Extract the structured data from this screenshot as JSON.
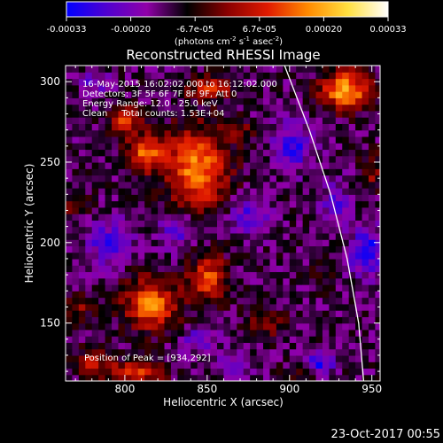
{
  "chart_data": {
    "type": "heatmap",
    "title": "Reconstructed RHESSI Image",
    "xlabel": "Heliocentric X (arcsec)",
    "ylabel": "Heliocentric Y (arcsec)",
    "xlim": [
      764,
      955
    ],
    "ylim": [
      114,
      310
    ],
    "x_ticks": [
      "800",
      "850",
      "900",
      "950"
    ],
    "y_ticks": [
      "150",
      "200",
      "250",
      "300"
    ],
    "colorbar": {
      "range": [
        -0.00033,
        0.00033
      ],
      "ticks": [
        "-0.00033",
        "-0.00020",
        "-6.7e-05",
        "6.7e-05",
        "0.00020",
        "0.00033"
      ],
      "units_label": "(photons cm",
      "units_exp1": "-2",
      "units_mid": " s",
      "units_exp2": "-1",
      "units_mid2": " asec",
      "units_exp3": "-2",
      "units_end": ")",
      "stops": [
        "#0000ff",
        "#5000d0",
        "#9000a8",
        "#000000",
        "#8a0000",
        "#e01a00",
        "#ff8a00",
        "#ffe040",
        "#ffffff"
      ]
    },
    "annotations": [
      "16-May-2015 16:02:02.000 to 16:12:02.000",
      "Detectors: 3F 5F 6F 7F 8F 9F, Att 0",
      "Energy Range: 12.0 - 25.0 keV",
      "Clean     Total counts: 1.53E+04"
    ],
    "peak_label": "Position of Peak = [934,292]",
    "peak": [
      934,
      292
    ],
    "sources": [
      {
        "x": 813,
        "y": 256,
        "sx": 9,
        "sy": 8,
        "amp": 0.00024
      },
      {
        "x": 800,
        "y": 277,
        "sx": 7,
        "sy": 6,
        "amp": 0.0002
      },
      {
        "x": 844,
        "y": 246,
        "sx": 13,
        "sy": 18,
        "amp": 0.00028
      },
      {
        "x": 852,
        "y": 296,
        "sx": 10,
        "sy": 5,
        "amp": 0.00018
      },
      {
        "x": 934,
        "y": 295,
        "sx": 10,
        "sy": 8,
        "amp": 0.00033
      },
      {
        "x": 816,
        "y": 162,
        "sx": 12,
        "sy": 11,
        "amp": 0.00027
      },
      {
        "x": 851,
        "y": 178,
        "sx": 8,
        "sy": 10,
        "amp": 0.00023
      },
      {
        "x": 806,
        "y": 120,
        "sx": 12,
        "sy": 5,
        "amp": 0.00022
      },
      {
        "x": 780,
        "y": 126,
        "sx": 6,
        "sy": 6,
        "amp": 0.00016
      },
      {
        "x": 772,
        "y": 160,
        "sx": 6,
        "sy": 6,
        "amp": 0.00012
      },
      {
        "x": 950,
        "y": 245,
        "sx": 5,
        "sy": 8,
        "amp": 0.00012
      },
      {
        "x": 885,
        "y": 150,
        "sx": 9,
        "sy": 7,
        "amp": 0.0001
      },
      {
        "x": 905,
        "y": 118,
        "sx": 7,
        "sy": 4,
        "amp": 9e-05
      },
      {
        "x": 770,
        "y": 222,
        "sx": 6,
        "sy": 5,
        "amp": 9e-05
      },
      {
        "x": 870,
        "y": 270,
        "sx": 6,
        "sy": 5,
        "amp": 8e-05
      },
      {
        "x": 920,
        "y": 180,
        "sx": 6,
        "sy": 7,
        "amp": 7e-05
      },
      {
        "x": 902,
        "y": 260,
        "sx": 8,
        "sy": 10,
        "amp": -0.00016
      },
      {
        "x": 947,
        "y": 195,
        "sx": 7,
        "sy": 10,
        "amp": -0.0002
      },
      {
        "x": 918,
        "y": 125,
        "sx": 6,
        "sy": 5,
        "amp": -0.00018
      },
      {
        "x": 790,
        "y": 200,
        "sx": 10,
        "sy": 10,
        "amp": -0.00013
      },
      {
        "x": 832,
        "y": 208,
        "sx": 8,
        "sy": 8,
        "amp": -0.00012
      },
      {
        "x": 845,
        "y": 140,
        "sx": 8,
        "sy": 6,
        "amp": -0.00011
      },
      {
        "x": 876,
        "y": 218,
        "sx": 8,
        "sy": 8,
        "amp": -0.00014
      },
      {
        "x": 782,
        "y": 300,
        "sx": 6,
        "sy": 5,
        "amp": -0.0001
      },
      {
        "x": 928,
        "y": 225,
        "sx": 6,
        "sy": 8,
        "amp": -0.00012
      },
      {
        "x": 866,
        "y": 125,
        "sx": 6,
        "sy": 5,
        "amp": -0.0001
      }
    ],
    "background": -0.00012,
    "noise": 5.5e-05,
    "limb_points": [
      [
        897,
        310
      ],
      [
        912,
        270
      ],
      [
        925,
        230
      ],
      [
        935,
        190
      ],
      [
        942,
        150
      ],
      [
        945,
        114
      ]
    ],
    "grid": false
  },
  "timestamp": "23-Oct-2017 00:55"
}
